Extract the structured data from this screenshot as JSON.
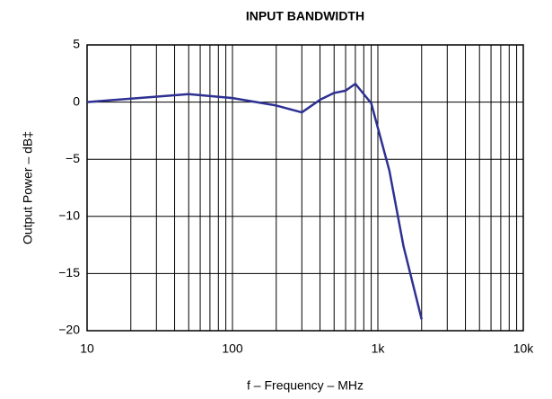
{
  "chart_data": {
    "type": "line",
    "title": "INPUT BANDWIDTH",
    "xlabel": "f – Frequency – MHz",
    "ylabel": "Output Power – dB‡",
    "x": [
      10,
      50,
      100,
      200,
      300,
      400,
      500,
      600,
      700,
      900,
      1200,
      1500,
      2000
    ],
    "series": [
      {
        "name": "Output Power",
        "color": "#2e3192",
        "values": [
          0,
          0.7,
          0.35,
          -0.3,
          -0.9,
          0.2,
          0.8,
          1.0,
          1.6,
          -0.1,
          -6,
          -12.6,
          -19
        ]
      }
    ],
    "xlog": true,
    "xlim": [
      10,
      10000
    ],
    "xticks": [
      10,
      100,
      {
        "value": 1000,
        "label": "1k"
      },
      {
        "value": 10000,
        "label": "10k"
      }
    ],
    "xminorticks": [
      20,
      30,
      40,
      50,
      60,
      70,
      80,
      90,
      200,
      300,
      400,
      500,
      600,
      700,
      800,
      900,
      2000,
      3000,
      4000,
      5000,
      6000,
      7000,
      8000,
      9000
    ],
    "ylim": [
      -20,
      5
    ],
    "yticks": [
      5,
      0,
      {
        "value": -5,
        "label": "−5"
      },
      {
        "value": -10,
        "label": "−10"
      },
      {
        "value": -15,
        "label": "−15"
      },
      {
        "value": -20,
        "label": "−20"
      }
    ],
    "grid": true
  }
}
